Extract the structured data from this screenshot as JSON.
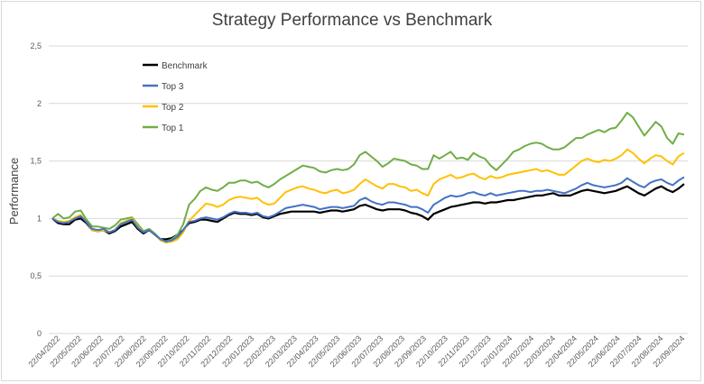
{
  "chart_data": {
    "type": "line",
    "title": "Strategy Performance vs Benchmark",
    "xlabel": "",
    "ylabel": "Performance",
    "ylim": [
      0,
      2.5
    ],
    "y_ticks": [
      "0",
      "0,5",
      "1",
      "1,5",
      "2",
      "2,5"
    ],
    "grid": "horizontal",
    "legend_position": "top-left",
    "x_tick_labels": [
      "22/04/2022",
      "22/05/2022",
      "22/06/2022",
      "22/07/2022",
      "22/08/2022",
      "22/09/2022",
      "22/10/2022",
      "22/11/2022",
      "22/12/2022",
      "22/01/2023",
      "22/02/2023",
      "22/03/2023",
      "22/04/2023",
      "22/05/2023",
      "22/06/2023",
      "22/07/2023",
      "22/08/2023",
      "22/09/2023",
      "22/10/2023",
      "22/11/2023",
      "22/12/2023",
      "22/01/2024",
      "22/02/2024",
      "22/03/2024",
      "22/04/2024",
      "22/05/2024",
      "22/06/2024",
      "22/07/2024",
      "22/08/2024",
      "22/09/2024"
    ],
    "series": [
      {
        "name": "Benchmark",
        "color": "#000000",
        "values": [
          1.0,
          0.96,
          0.95,
          0.95,
          0.99,
          1.0,
          0.96,
          0.9,
          0.89,
          0.9,
          0.87,
          0.89,
          0.93,
          0.95,
          0.97,
          0.91,
          0.87,
          0.9,
          0.86,
          0.82,
          0.82,
          0.83,
          0.86,
          0.9,
          0.96,
          0.97,
          0.99,
          0.99,
          0.98,
          0.97,
          1.0,
          1.03,
          1.05,
          1.04,
          1.04,
          1.03,
          1.04,
          1.01,
          1.0,
          1.02,
          1.04,
          1.05,
          1.06,
          1.06,
          1.06,
          1.06,
          1.06,
          1.05,
          1.06,
          1.07,
          1.07,
          1.06,
          1.07,
          1.08,
          1.11,
          1.12,
          1.1,
          1.08,
          1.07,
          1.08,
          1.08,
          1.08,
          1.07,
          1.05,
          1.04,
          1.02,
          0.99,
          1.04,
          1.06,
          1.08,
          1.1,
          1.11,
          1.12,
          1.13,
          1.14,
          1.14,
          1.13,
          1.14,
          1.14,
          1.15,
          1.16,
          1.16,
          1.17,
          1.18,
          1.19,
          1.2,
          1.2,
          1.21,
          1.22,
          1.2,
          1.2,
          1.2,
          1.22,
          1.24,
          1.25,
          1.24,
          1.23,
          1.22,
          1.23,
          1.24,
          1.26,
          1.28,
          1.25,
          1.22,
          1.2,
          1.23,
          1.26,
          1.28,
          1.25,
          1.23,
          1.26,
          1.3
        ]
      },
      {
        "name": "Top 3",
        "color": "#4472c4",
        "values": [
          1.0,
          0.97,
          0.96,
          0.97,
          1.0,
          1.02,
          0.97,
          0.91,
          0.9,
          0.91,
          0.88,
          0.9,
          0.95,
          0.97,
          0.99,
          0.92,
          0.88,
          0.9,
          0.86,
          0.82,
          0.8,
          0.81,
          0.84,
          0.9,
          0.97,
          0.98,
          1.0,
          1.01,
          1.0,
          0.99,
          1.01,
          1.04,
          1.06,
          1.05,
          1.05,
          1.04,
          1.05,
          1.02,
          1.01,
          1.03,
          1.06,
          1.09,
          1.1,
          1.11,
          1.12,
          1.11,
          1.1,
          1.08,
          1.09,
          1.1,
          1.1,
          1.09,
          1.1,
          1.11,
          1.16,
          1.18,
          1.15,
          1.13,
          1.12,
          1.14,
          1.14,
          1.13,
          1.12,
          1.1,
          1.1,
          1.08,
          1.05,
          1.12,
          1.15,
          1.18,
          1.2,
          1.19,
          1.2,
          1.22,
          1.23,
          1.21,
          1.2,
          1.22,
          1.2,
          1.21,
          1.22,
          1.23,
          1.24,
          1.24,
          1.23,
          1.24,
          1.24,
          1.25,
          1.24,
          1.23,
          1.22,
          1.24,
          1.26,
          1.29,
          1.31,
          1.29,
          1.28,
          1.27,
          1.28,
          1.29,
          1.31,
          1.35,
          1.32,
          1.29,
          1.27,
          1.31,
          1.33,
          1.34,
          1.31,
          1.29,
          1.33,
          1.36
        ]
      },
      {
        "name": "Top 2",
        "color": "#ffc000",
        "values": [
          1.0,
          0.98,
          0.97,
          0.98,
          1.01,
          1.03,
          0.97,
          0.9,
          0.89,
          0.9,
          0.88,
          0.9,
          0.96,
          0.98,
          1.0,
          0.93,
          0.88,
          0.9,
          0.86,
          0.81,
          0.79,
          0.8,
          0.82,
          0.88,
          0.98,
          1.03,
          1.08,
          1.13,
          1.12,
          1.1,
          1.12,
          1.16,
          1.18,
          1.19,
          1.18,
          1.17,
          1.18,
          1.14,
          1.12,
          1.13,
          1.18,
          1.23,
          1.25,
          1.27,
          1.28,
          1.26,
          1.25,
          1.23,
          1.22,
          1.24,
          1.25,
          1.22,
          1.23,
          1.25,
          1.3,
          1.34,
          1.31,
          1.28,
          1.26,
          1.3,
          1.3,
          1.28,
          1.27,
          1.24,
          1.25,
          1.22,
          1.2,
          1.3,
          1.34,
          1.36,
          1.38,
          1.35,
          1.36,
          1.38,
          1.39,
          1.36,
          1.34,
          1.37,
          1.35,
          1.36,
          1.38,
          1.39,
          1.4,
          1.41,
          1.42,
          1.43,
          1.41,
          1.42,
          1.4,
          1.38,
          1.38,
          1.42,
          1.46,
          1.5,
          1.52,
          1.5,
          1.49,
          1.51,
          1.5,
          1.52,
          1.55,
          1.6,
          1.57,
          1.52,
          1.48,
          1.52,
          1.55,
          1.54,
          1.5,
          1.47,
          1.54,
          1.57
        ]
      },
      {
        "name": "Top 1",
        "color": "#70ad47",
        "values": [
          1.0,
          1.04,
          1.0,
          1.01,
          1.06,
          1.07,
          0.99,
          0.93,
          0.93,
          0.92,
          0.91,
          0.94,
          0.99,
          1.0,
          1.01,
          0.95,
          0.89,
          0.91,
          0.87,
          0.82,
          0.8,
          0.82,
          0.86,
          0.95,
          1.12,
          1.17,
          1.24,
          1.27,
          1.25,
          1.24,
          1.27,
          1.31,
          1.31,
          1.33,
          1.33,
          1.31,
          1.32,
          1.29,
          1.27,
          1.3,
          1.34,
          1.37,
          1.4,
          1.43,
          1.46,
          1.45,
          1.44,
          1.41,
          1.4,
          1.42,
          1.43,
          1.42,
          1.43,
          1.47,
          1.55,
          1.58,
          1.54,
          1.5,
          1.45,
          1.48,
          1.52,
          1.51,
          1.5,
          1.47,
          1.46,
          1.43,
          1.43,
          1.55,
          1.52,
          1.55,
          1.58,
          1.52,
          1.53,
          1.51,
          1.57,
          1.54,
          1.52,
          1.46,
          1.42,
          1.47,
          1.52,
          1.58,
          1.6,
          1.63,
          1.65,
          1.66,
          1.65,
          1.62,
          1.6,
          1.6,
          1.62,
          1.66,
          1.7,
          1.7,
          1.73,
          1.75,
          1.77,
          1.75,
          1.78,
          1.79,
          1.85,
          1.92,
          1.88,
          1.8,
          1.72,
          1.78,
          1.84,
          1.8,
          1.7,
          1.65,
          1.74,
          1.73
        ]
      }
    ]
  }
}
